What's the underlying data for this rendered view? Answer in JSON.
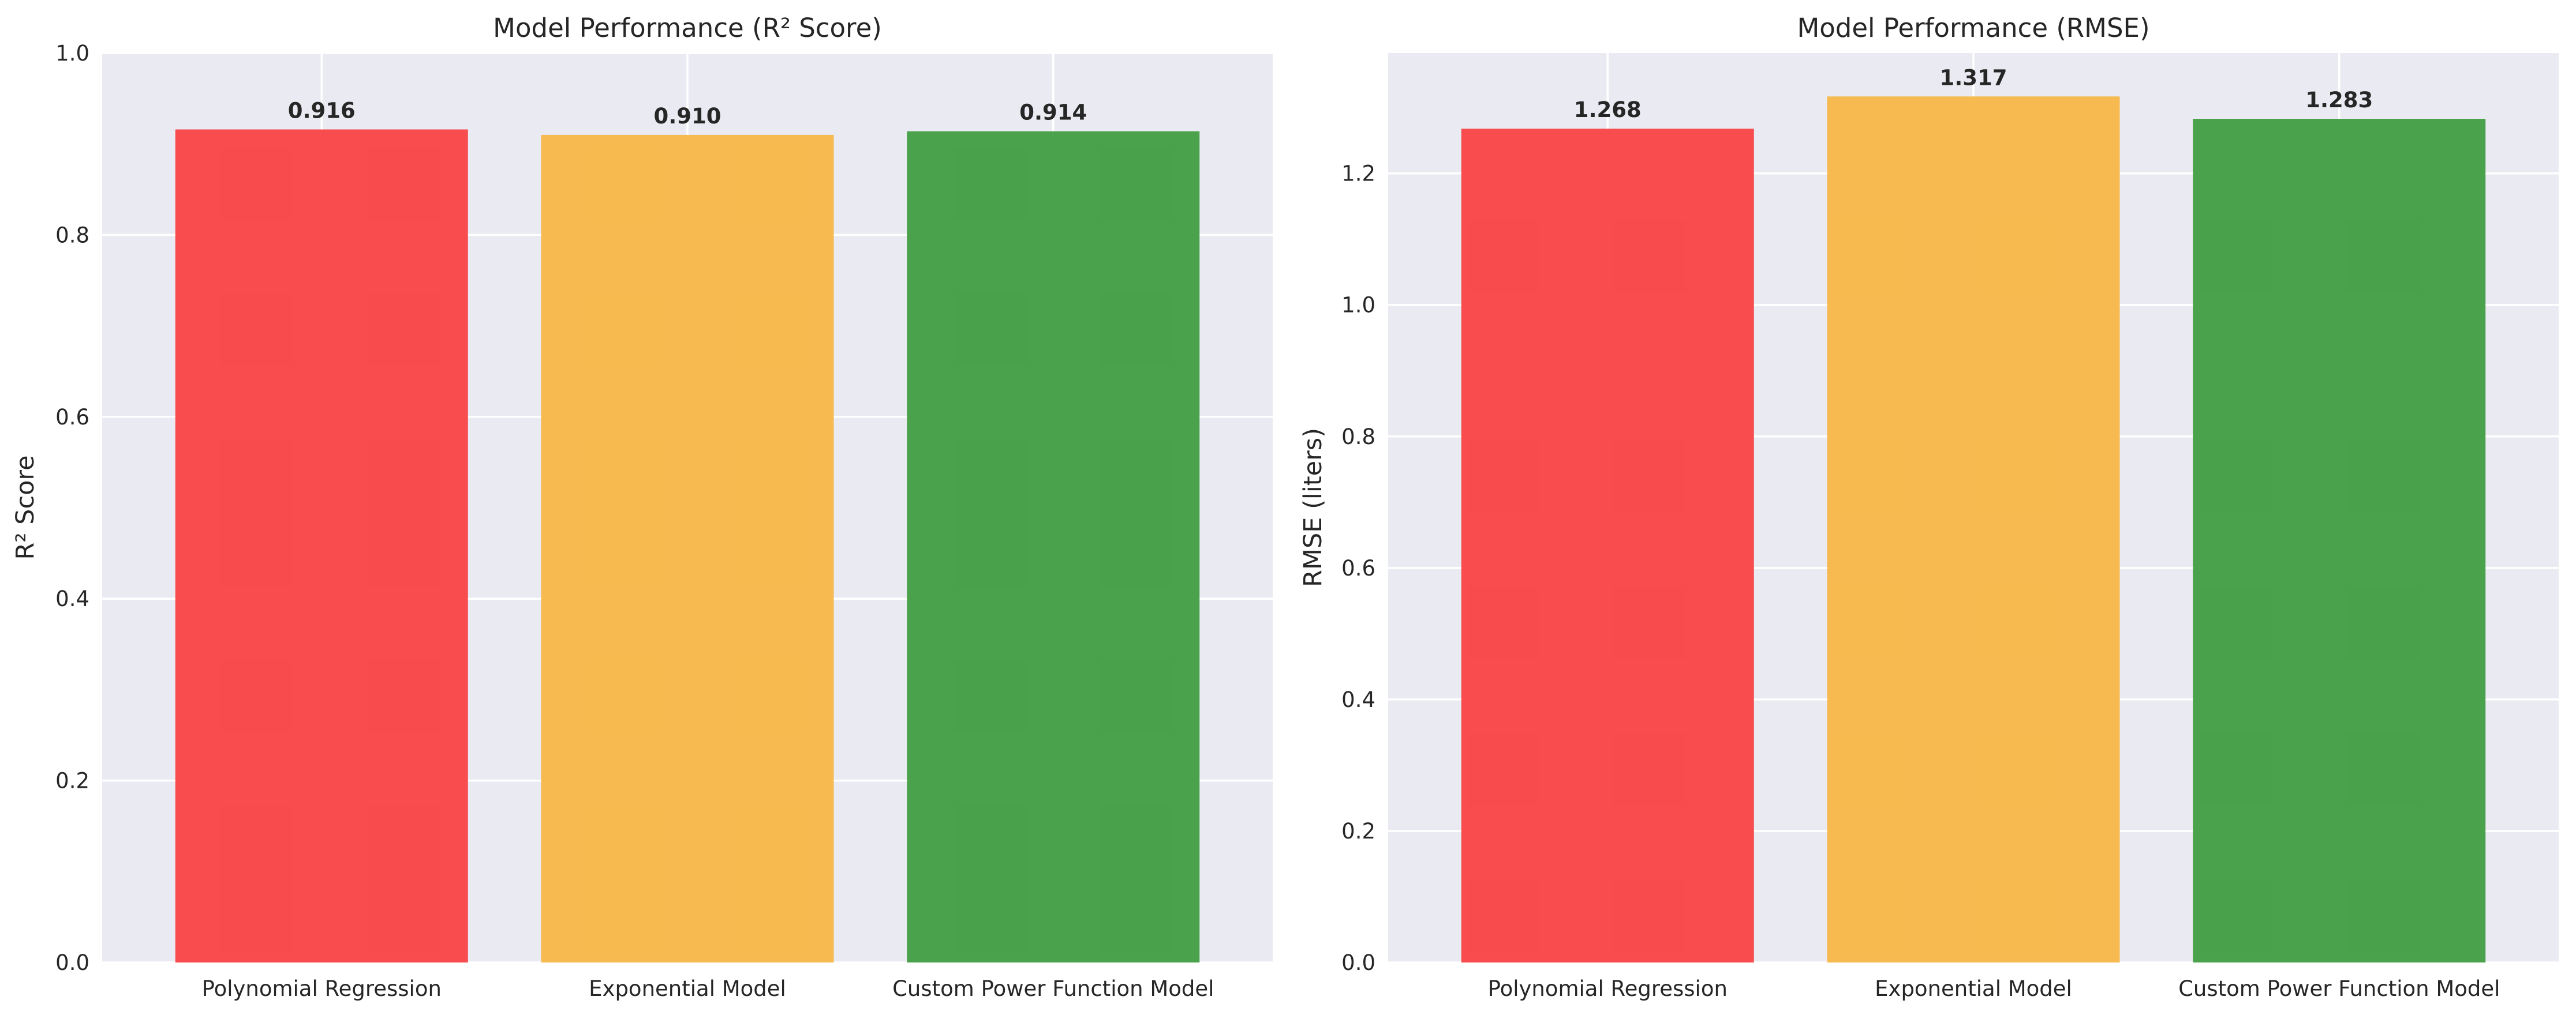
{
  "chart_data": [
    {
      "type": "bar",
      "title": "Model Performance (R² Score)",
      "xlabel": "",
      "ylabel": "R² Score",
      "categories": [
        "Polynomial Regression",
        "Exponential Model",
        "Custom Power Function Model"
      ],
      "values": [
        0.916,
        0.91,
        0.914
      ],
      "value_labels": [
        "0.916",
        "0.910",
        "0.914"
      ],
      "colors": [
        "#F8484B",
        "#F7B94C",
        "#47A048"
      ],
      "ylim": [
        0,
        1.0
      ],
      "yticks": [
        0.0,
        0.2,
        0.4,
        0.6,
        0.8,
        1.0
      ],
      "ytick_labels": [
        "0.0",
        "0.2",
        "0.4",
        "0.6",
        "0.8",
        "1.0"
      ],
      "grid": true,
      "legend": "none"
    },
    {
      "type": "bar",
      "title": "Model Performance (RMSE)",
      "xlabel": "",
      "ylabel": "RMSE (liters)",
      "categories": [
        "Polynomial Regression",
        "Exponential Model",
        "Custom Power Function Model"
      ],
      "values": [
        1.268,
        1.317,
        1.283
      ],
      "value_labels": [
        "1.268",
        "1.317",
        "1.283"
      ],
      "colors": [
        "#F8484B",
        "#F7B94C",
        "#47A048"
      ],
      "ylim": [
        0,
        1.383
      ],
      "yticks": [
        0.0,
        0.2,
        0.4,
        0.6,
        0.8,
        1.0,
        1.2
      ],
      "ytick_labels": [
        "0.0",
        "0.2",
        "0.4",
        "0.6",
        "0.8",
        "1.0",
        "1.2"
      ],
      "grid": true,
      "legend": "none"
    }
  ]
}
